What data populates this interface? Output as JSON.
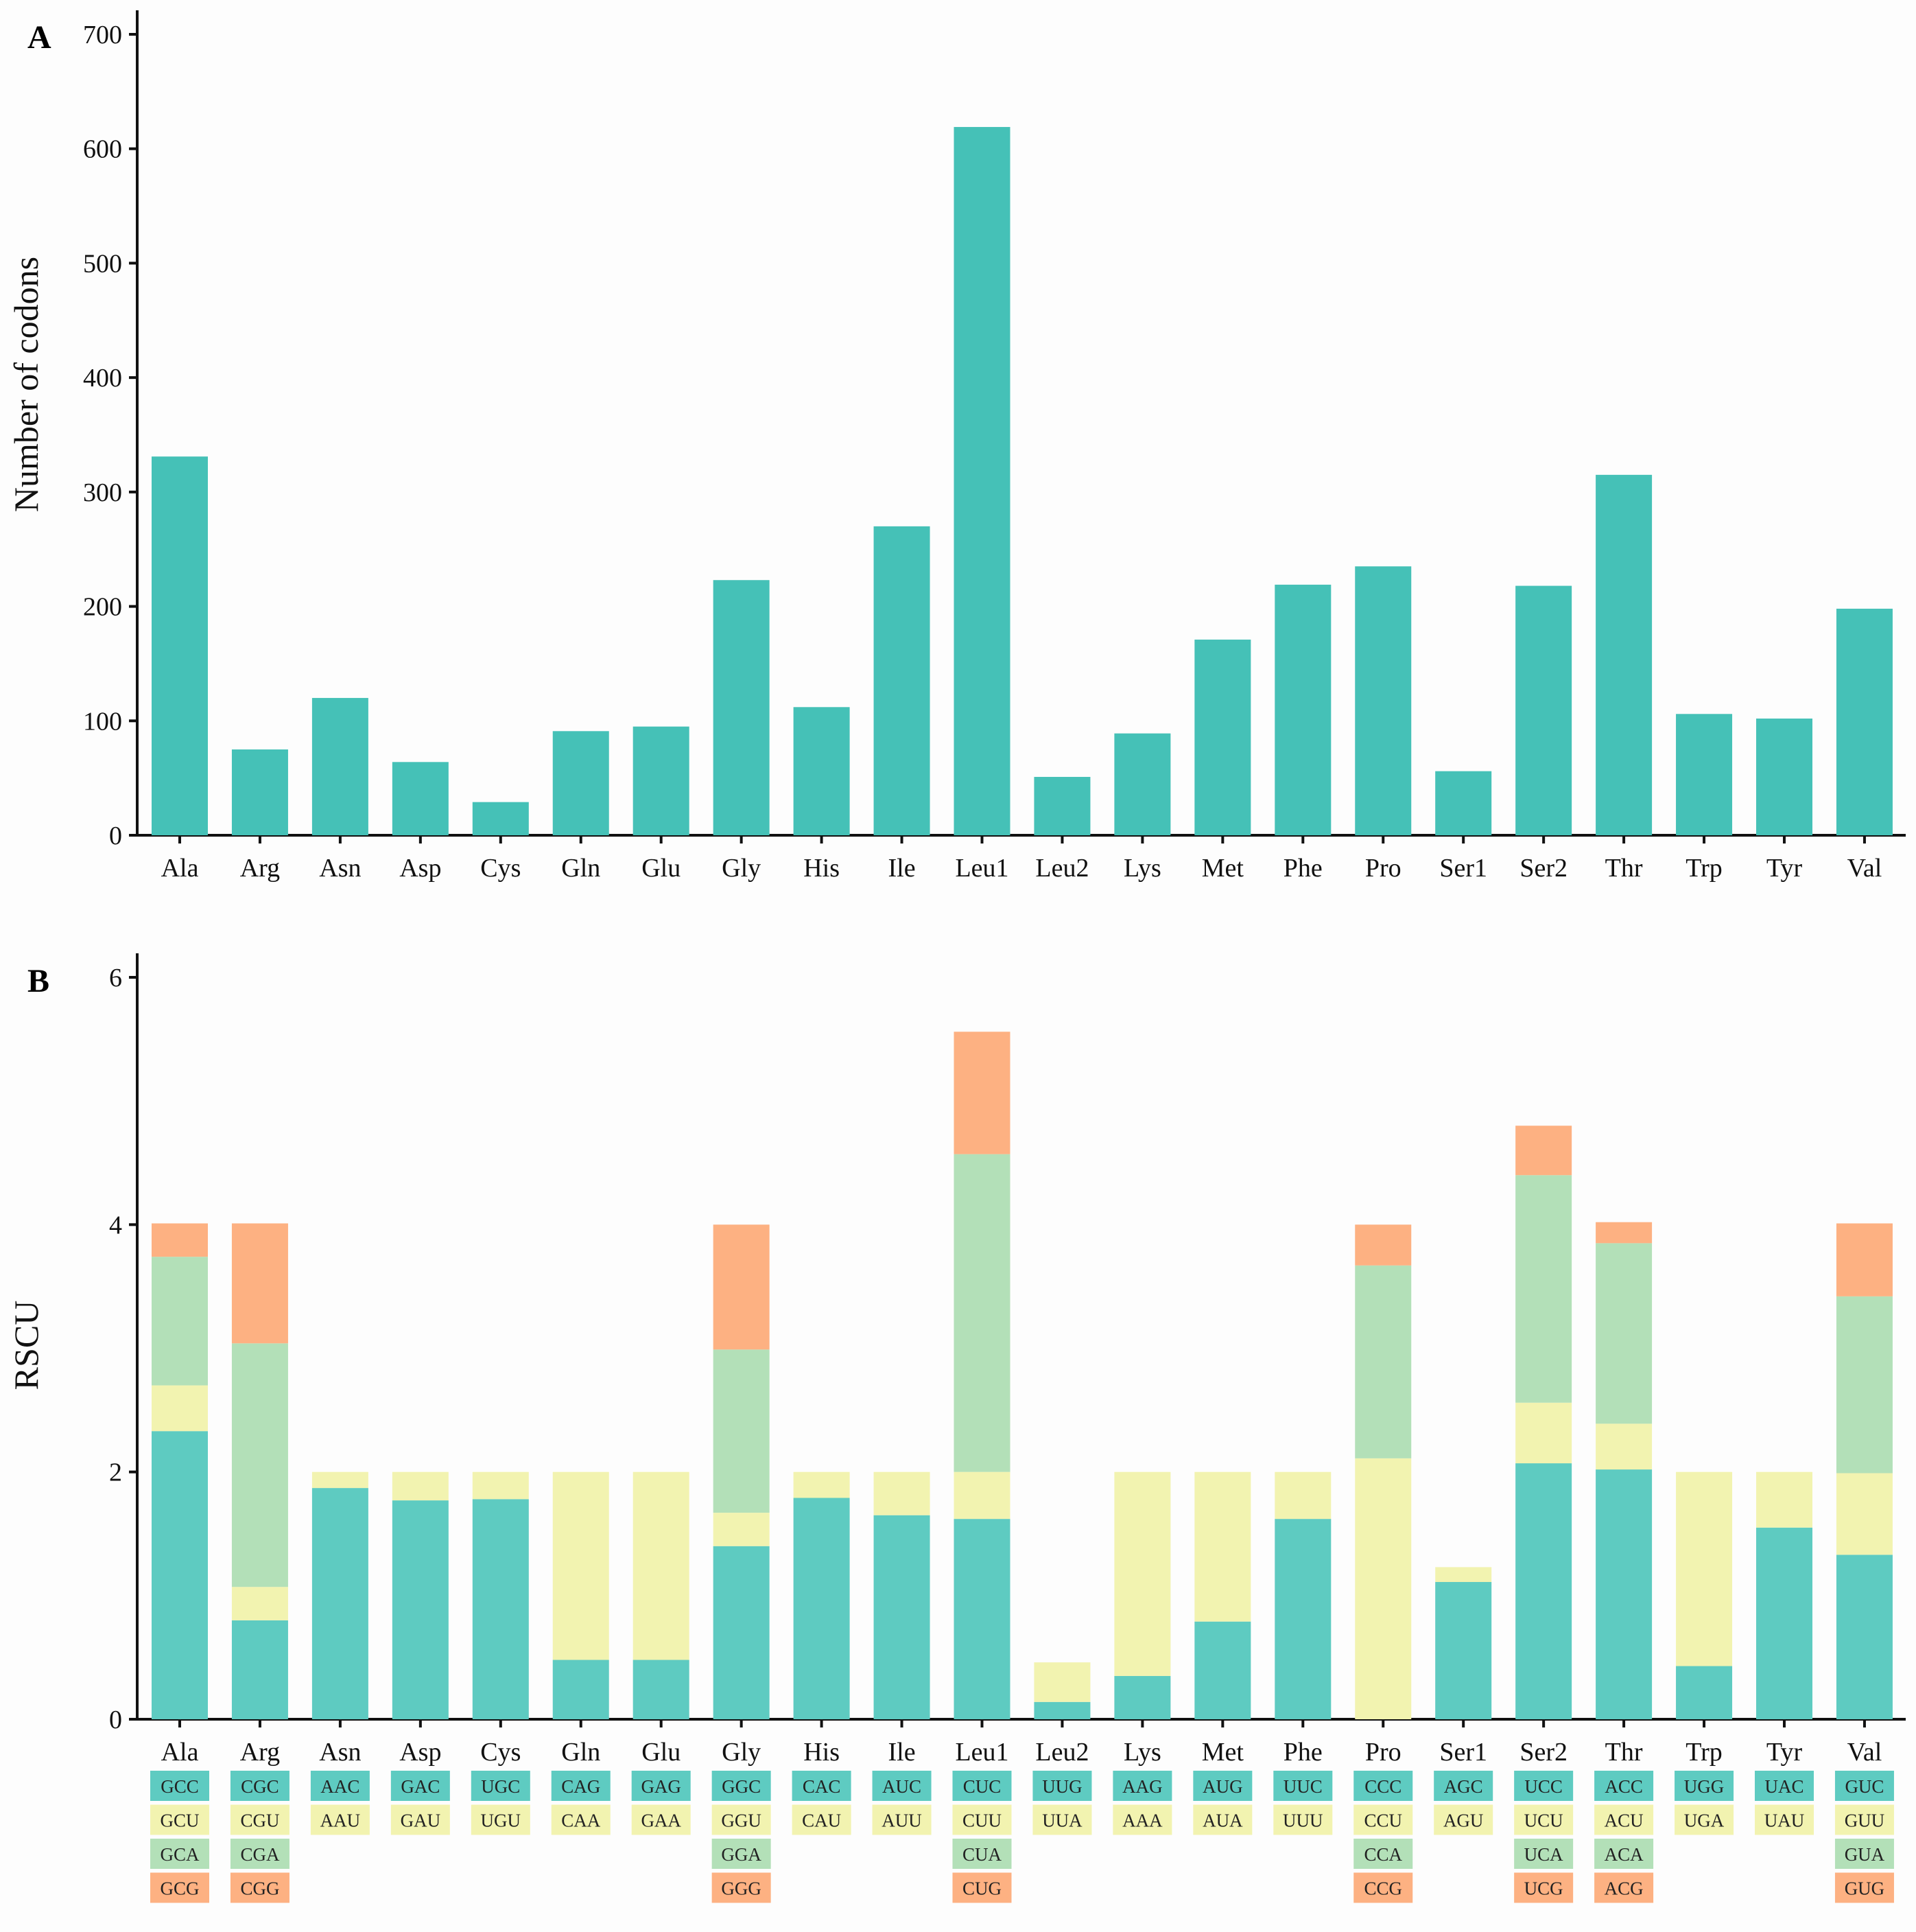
{
  "colors": {
    "bar_a": "#45c1b7",
    "codon1": "#5ecbc1",
    "codon2": "#f2f3b0",
    "codon3": "#b3e0b8",
    "codon4": "#fdb182",
    "axis": "#111111"
  },
  "chart_data": [
    {
      "panel": "A",
      "type": "bar",
      "ylabel": "Number of codons",
      "ylim": [
        0,
        700
      ],
      "yticks": [
        0,
        100,
        200,
        300,
        400,
        500,
        600,
        700
      ],
      "categories": [
        "Ala",
        "Arg",
        "Asn",
        "Asp",
        "Cys",
        "Gln",
        "Glu",
        "Gly",
        "His",
        "Ile",
        "Leu1",
        "Leu2",
        "Lys",
        "Met",
        "Phe",
        "Pro",
        "Ser1",
        "Ser2",
        "Thr",
        "Trp",
        "Tyr",
        "Val"
      ],
      "values": [
        331,
        75,
        120,
        64,
        29,
        91,
        95,
        223,
        112,
        270,
        619,
        51,
        89,
        171,
        219,
        235,
        56,
        218,
        315,
        106,
        102,
        198
      ],
      "grid": false
    },
    {
      "panel": "B",
      "type": "bar",
      "stacked": true,
      "ylabel": "RSCU",
      "ylim": [
        0,
        6
      ],
      "yticks": [
        0,
        2,
        4,
        6
      ],
      "categories": [
        "Ala",
        "Arg",
        "Asn",
        "Asp",
        "Cys",
        "Gln",
        "Glu",
        "Gly",
        "His",
        "Ile",
        "Leu1",
        "Leu2",
        "Lys",
        "Met",
        "Phe",
        "Pro",
        "Ser1",
        "Ser2",
        "Thr",
        "Trp",
        "Tyr",
        "Val"
      ],
      "stacks": [
        {
          "codons": [
            "GCC",
            "GCU",
            "GCA",
            "GCG"
          ],
          "values": [
            2.33,
            0.37,
            1.04,
            0.27
          ]
        },
        {
          "codons": [
            "CGC",
            "CGU",
            "CGA",
            "CGG"
          ],
          "values": [
            0.8,
            0.27,
            1.97,
            0.97
          ]
        },
        {
          "codons": [
            "AAC",
            "AAU"
          ],
          "values": [
            1.87,
            0.13
          ]
        },
        {
          "codons": [
            "GAC",
            "GAU"
          ],
          "values": [
            1.77,
            0.23
          ]
        },
        {
          "codons": [
            "UGC",
            "UGU"
          ],
          "values": [
            1.78,
            0.22
          ]
        },
        {
          "codons": [
            "CAG",
            "CAA"
          ],
          "values": [
            0.48,
            1.52
          ]
        },
        {
          "codons": [
            "GAG",
            "GAA"
          ],
          "values": [
            0.48,
            1.52
          ]
        },
        {
          "codons": [
            "GGC",
            "GGU",
            "GGA",
            "GGG"
          ],
          "values": [
            1.4,
            0.27,
            1.32,
            1.01
          ]
        },
        {
          "codons": [
            "CAC",
            "CAU"
          ],
          "values": [
            1.79,
            0.21
          ]
        },
        {
          "codons": [
            "AUC",
            "AUU"
          ],
          "values": [
            1.65,
            0.35
          ]
        },
        {
          "codons": [
            "CUC",
            "CUU",
            "CUA",
            "CUG"
          ],
          "values": [
            1.62,
            0.38,
            2.57,
            0.99
          ]
        },
        {
          "codons": [
            "UUG",
            "UUA"
          ],
          "values": [
            0.14,
            0.32
          ]
        },
        {
          "codons": [
            "AAG",
            "AAA"
          ],
          "values": [
            0.35,
            1.65
          ]
        },
        {
          "codons": [
            "AUG",
            "AUA"
          ],
          "values": [
            0.79,
            1.21
          ]
        },
        {
          "codons": [
            "UUC",
            "UUU"
          ],
          "values": [
            1.62,
            0.38
          ]
        },
        {
          "codons": [
            "CCC",
            "CCU",
            "CCA",
            "CCG"
          ],
          "values": [
            0.0,
            2.11,
            1.56,
            0.33
          ]
        },
        {
          "codons": [
            "AGC",
            "AGU"
          ],
          "values": [
            1.11,
            0.12
          ]
        },
        {
          "codons": [
            "UCC",
            "UCU",
            "UCA",
            "UCG"
          ],
          "values": [
            2.07,
            0.49,
            1.84,
            0.4
          ]
        },
        {
          "codons": [
            "ACC",
            "ACU",
            "ACA",
            "ACG"
          ],
          "values": [
            2.02,
            0.37,
            1.46,
            0.17
          ]
        },
        {
          "codons": [
            "UGG",
            "UGA"
          ],
          "values": [
            0.43,
            1.57
          ]
        },
        {
          "codons": [
            "UAC",
            "UAU"
          ],
          "values": [
            1.55,
            0.45
          ]
        },
        {
          "codons": [
            "GUC",
            "GUU",
            "GUA",
            "GUG"
          ],
          "values": [
            1.33,
            0.66,
            1.43,
            0.59
          ]
        }
      ],
      "grid": false
    }
  ]
}
